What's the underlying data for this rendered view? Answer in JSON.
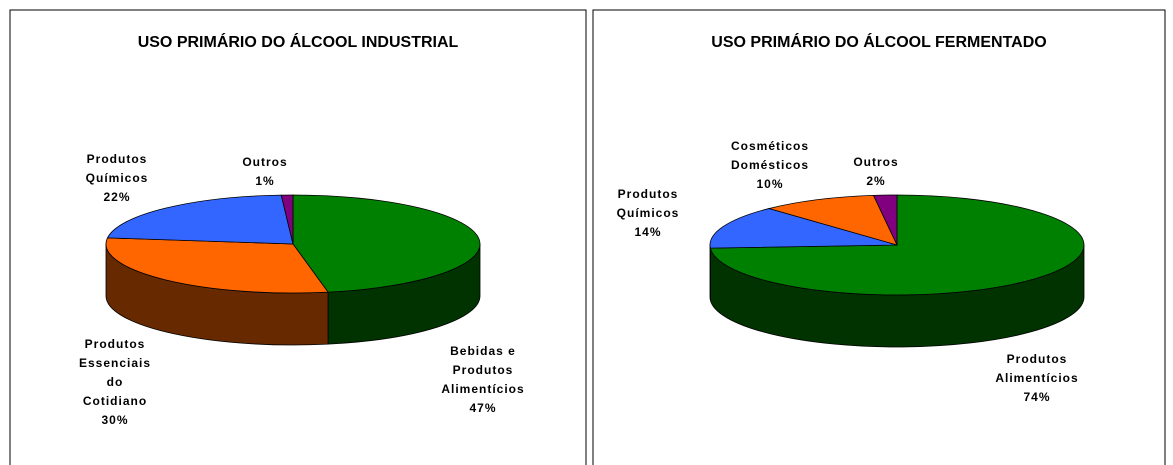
{
  "chart_data": [
    {
      "type": "pie3d",
      "title": "USO PRIMÁRIO DO ÁLCOOL INDUSTRIAL",
      "categories": [
        "Bebidas e Produtos Alimentícios",
        "Produtos Essenciais do Cotidiano",
        "Produtos Químicos",
        "Outros"
      ],
      "values": [
        47,
        30,
        22,
        1
      ],
      "value_labels": [
        "47%",
        "30%",
        "22%",
        "1%"
      ],
      "colors": [
        "#008000",
        "#ff6600",
        "#3366ff",
        "#800080"
      ]
    },
    {
      "type": "pie3d",
      "title": "USO PRIMÁRIO DO ÁLCOOL FERMENTADO",
      "categories": [
        "Produtos Alimentícios",
        "Produtos Químicos",
        "Cosméticos Domésticos",
        "Outros"
      ],
      "values": [
        74,
        14,
        10,
        2
      ],
      "value_labels": [
        "74%",
        "14%",
        "10%",
        "2%"
      ],
      "colors": [
        "#008000",
        "#3366ff",
        "#ff6600",
        "#800080"
      ]
    }
  ]
}
